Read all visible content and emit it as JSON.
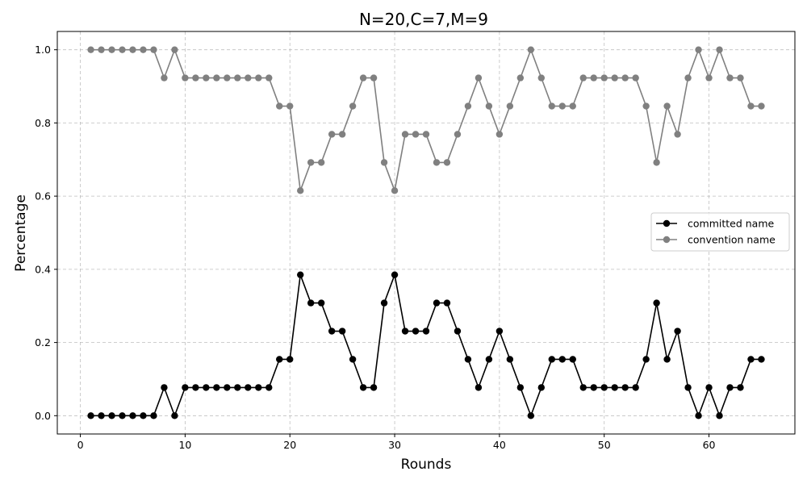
{
  "chart_data": {
    "type": "line",
    "title": "N=20,C=7,M=9",
    "xlabel": "Rounds",
    "ylabel": "Percentage",
    "xlim": [
      -2.2,
      68.2
    ],
    "ylim": [
      -0.05,
      1.05
    ],
    "xticks": [
      0,
      10,
      20,
      30,
      40,
      50,
      60
    ],
    "yticks": [
      0.0,
      0.2,
      0.4,
      0.6,
      0.8,
      1.0
    ],
    "xtick_labels": [
      "0",
      "10",
      "20",
      "30",
      "40",
      "50",
      "60"
    ],
    "ytick_labels": [
      "0.0",
      "0.2",
      "0.4",
      "0.6",
      "0.8",
      "1.0"
    ],
    "grid": true,
    "legend_position": "right",
    "x": [
      1,
      2,
      3,
      4,
      5,
      6,
      7,
      8,
      9,
      10,
      11,
      12,
      13,
      14,
      15,
      16,
      17,
      18,
      19,
      20,
      21,
      22,
      23,
      24,
      25,
      26,
      27,
      28,
      29,
      30,
      31,
      32,
      33,
      34,
      35,
      36,
      37,
      38,
      39,
      40,
      41,
      42,
      43,
      44,
      45,
      46,
      47,
      48,
      49,
      50,
      51,
      52,
      53,
      54,
      55,
      56,
      57,
      58,
      59,
      60,
      61,
      62,
      63,
      64,
      65
    ],
    "series": [
      {
        "name": "committed name",
        "color": "#000000",
        "values": [
          0,
          0,
          0,
          0,
          0,
          0,
          0,
          0.077,
          0,
          0.077,
          0.077,
          0.077,
          0.077,
          0.077,
          0.077,
          0.077,
          0.077,
          0.077,
          0.154,
          0.154,
          0.385,
          0.308,
          0.308,
          0.231,
          0.231,
          0.154,
          0.077,
          0.077,
          0.308,
          0.385,
          0.231,
          0.231,
          0.231,
          0.308,
          0.308,
          0.231,
          0.154,
          0.077,
          0.154,
          0.231,
          0.154,
          0.077,
          0,
          0.077,
          0.154,
          0.154,
          0.154,
          0.077,
          0.077,
          0.077,
          0.077,
          0.077,
          0.077,
          0.154,
          0.308,
          0.154,
          0.231,
          0.077,
          0,
          0.077,
          0,
          0.077,
          0.077,
          0.154,
          0.154
        ]
      },
      {
        "name": "convention name",
        "color": "#808080",
        "values": [
          1,
          1,
          1,
          1,
          1,
          1,
          1,
          0.923,
          1,
          0.923,
          0.923,
          0.923,
          0.923,
          0.923,
          0.923,
          0.923,
          0.923,
          0.923,
          0.846,
          0.846,
          0.615,
          0.692,
          0.692,
          0.769,
          0.769,
          0.846,
          0.923,
          0.923,
          0.692,
          0.615,
          0.769,
          0.769,
          0.769,
          0.692,
          0.692,
          0.769,
          0.846,
          0.923,
          0.846,
          0.769,
          0.846,
          0.923,
          1,
          0.923,
          0.846,
          0.846,
          0.846,
          0.923,
          0.923,
          0.923,
          0.923,
          0.923,
          0.923,
          0.846,
          0.692,
          0.846,
          0.769,
          0.923,
          1,
          0.923,
          1,
          0.923,
          0.923,
          0.846,
          0.846
        ]
      }
    ]
  }
}
